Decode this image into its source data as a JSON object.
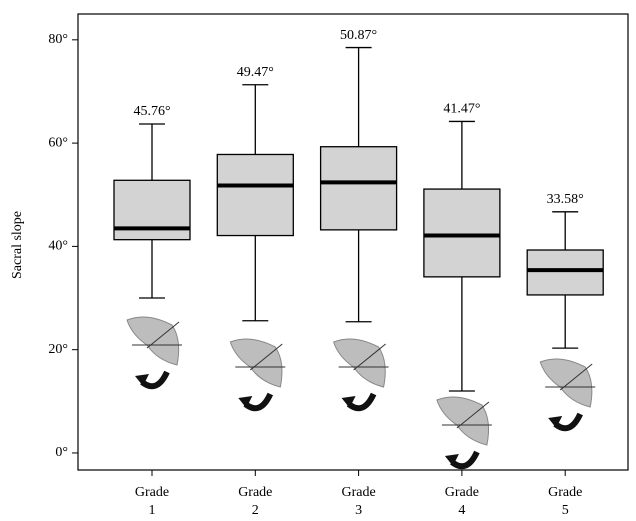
{
  "chart_data": {
    "type": "box",
    "y_label": "Sacral slope",
    "categories": [
      "Grade\n1",
      "Grade\n2",
      "Grade\n3",
      "Grade\n4",
      "Grade\n5"
    ],
    "boxes": [
      {
        "whisker_low": 30.0,
        "q1": 41.3,
        "median": 43.5,
        "q3": 52.8,
        "whisker_high": 63.7
      },
      {
        "whisker_low": 25.6,
        "q1": 42.1,
        "median": 51.8,
        "q3": 57.8,
        "whisker_high": 71.3
      },
      {
        "whisker_low": 25.4,
        "q1": 43.2,
        "median": 52.4,
        "q3": 59.3,
        "whisker_high": 78.5
      },
      {
        "whisker_low": 12.0,
        "q1": 34.1,
        "median": 42.1,
        "q3": 51.1,
        "whisker_high": 64.2
      },
      {
        "whisker_low": 20.3,
        "q1": 30.6,
        "median": 35.4,
        "q3": 39.3,
        "whisker_high": 46.7
      }
    ],
    "annotations": [
      "45.76°",
      "49.47°",
      "50.87°",
      "41.47°",
      "33.58°"
    ],
    "box_color": "#d3d3d3",
    "ylim": [
      -3.3,
      85
    ],
    "yticks": [
      {
        "value": 0,
        "label": "0°"
      },
      {
        "value": 20,
        "label": "20°"
      },
      {
        "value": 40,
        "label": "40°"
      },
      {
        "value": 60,
        "label": "60°"
      },
      {
        "value": 80,
        "label": "80°"
      }
    ]
  }
}
